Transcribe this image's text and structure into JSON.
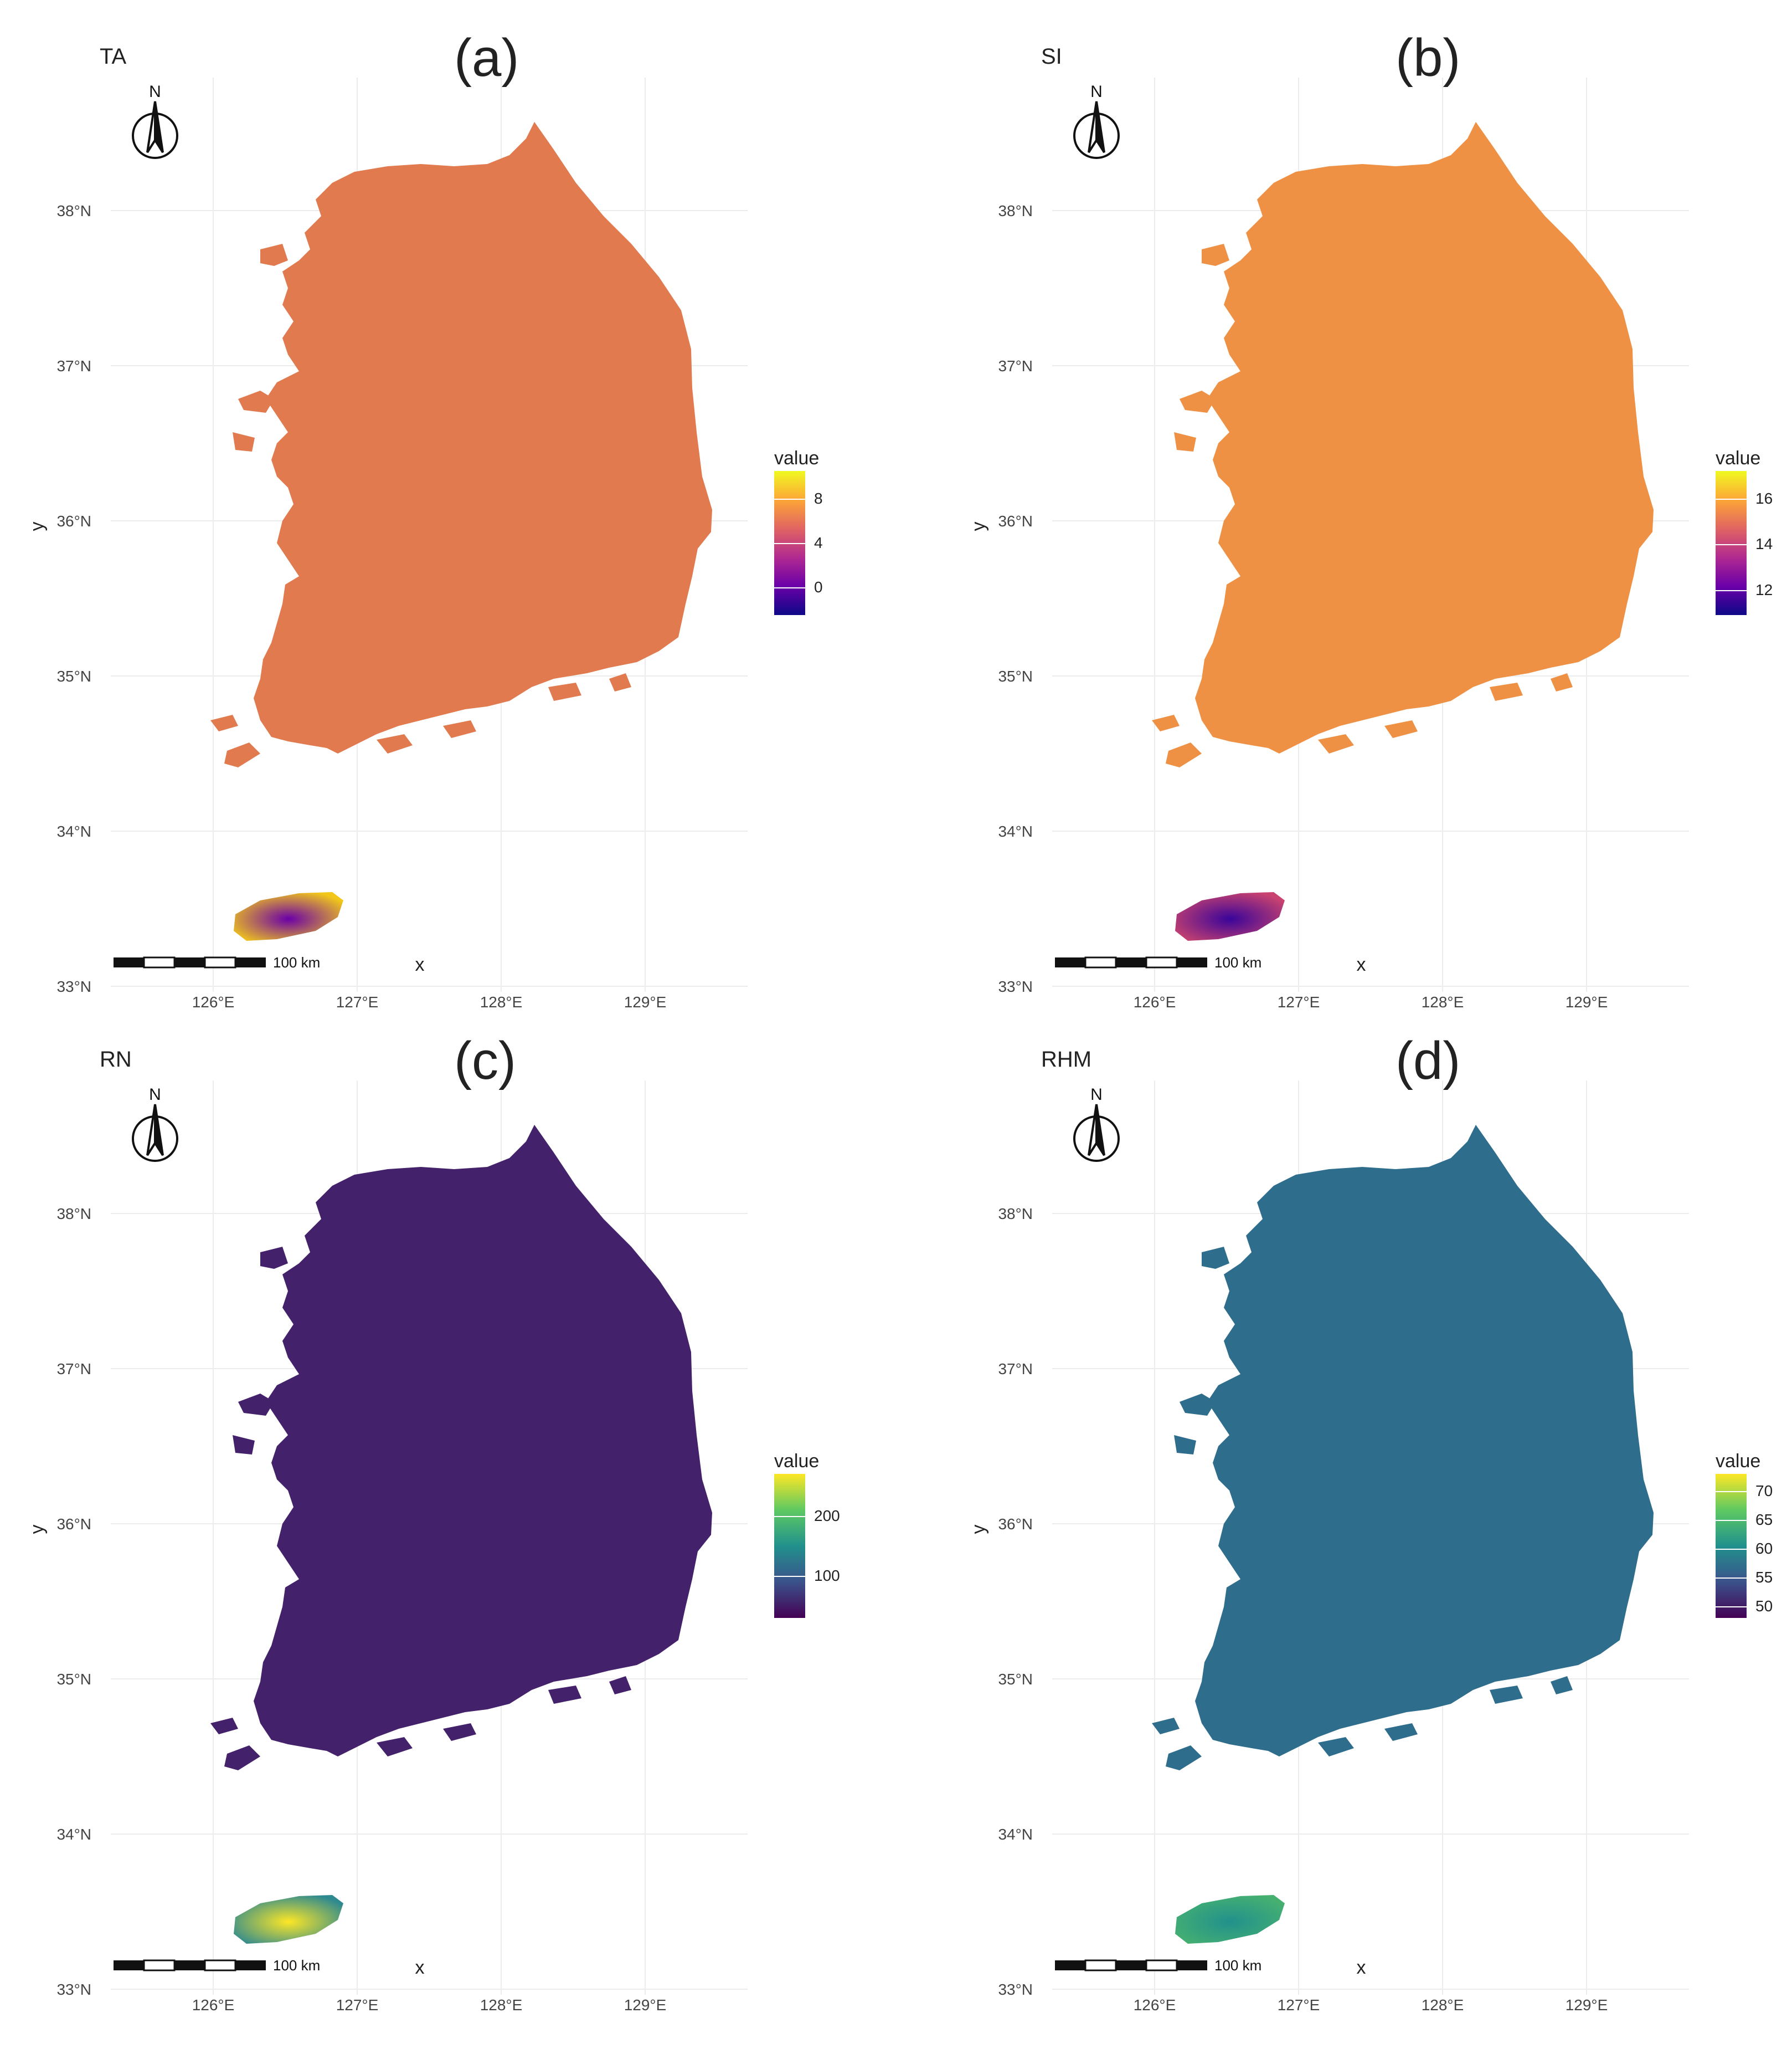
{
  "figure": {
    "panels": [
      {
        "id": "a",
        "variable": "TA",
        "panel_label": "(a)",
        "legend_title": "value",
        "legend_ticks": [
          "8",
          "4",
          "0"
        ],
        "legend_tick_values": [
          8,
          4,
          0
        ],
        "value_range": [
          -2.5,
          10.5
        ],
        "colormap": "plasma",
        "colormap_stops": [
          "#0d0887",
          "#6a00a8",
          "#b12a90",
          "#e16462",
          "#fca636",
          "#f0f921"
        ],
        "mainland_color": "#e17a4e",
        "jeju_color": "#f2c71a"
      },
      {
        "id": "b",
        "variable": "SI",
        "panel_label": "(b)",
        "legend_title": "value",
        "legend_ticks": [
          "16",
          "14",
          "12"
        ],
        "legend_tick_values": [
          16,
          14,
          12
        ],
        "value_range": [
          10.9,
          17.2
        ],
        "colormap": "plasma",
        "colormap_stops": [
          "#0d0887",
          "#6a00a8",
          "#b12a90",
          "#e16462",
          "#fca636",
          "#f0f921"
        ],
        "mainland_color": "#ef9145",
        "jeju_color": "#c8436f"
      },
      {
        "id": "c",
        "variable": "RN",
        "panel_label": "(c)",
        "legend_title": "value",
        "legend_ticks": [
          "200",
          "100"
        ],
        "legend_tick_values": [
          200,
          100
        ],
        "value_range": [
          30,
          270
        ],
        "colormap": "viridis",
        "colormap_stops": [
          "#440154",
          "#3b528b",
          "#21918c",
          "#5ec962",
          "#fde725"
        ],
        "mainland_color": "#44216b",
        "jeju_color": "#2f8a8f"
      },
      {
        "id": "d",
        "variable": "RHM",
        "panel_label": "(d)",
        "legend_title": "value",
        "legend_ticks": [
          "70",
          "65",
          "60",
          "55",
          "50"
        ],
        "legend_tick_values": [
          70,
          65,
          60,
          55,
          50
        ],
        "value_range": [
          48,
          73
        ],
        "colormap": "viridis",
        "colormap_stops": [
          "#440154",
          "#3b528b",
          "#21918c",
          "#5ec962",
          "#fde725"
        ],
        "mainland_color": "#2f6d8d",
        "jeju_color": "#46b071"
      }
    ],
    "latitude_labels": [
      "38°N",
      "37°N",
      "36°N",
      "35°N",
      "34°N",
      "33°N"
    ],
    "longitude_labels": [
      "126°E",
      "127°E",
      "128°E",
      "129°E"
    ],
    "x_axis_title": "x",
    "y_axis_title": "y",
    "north_arrow_label": "N",
    "scale_bar_label": "100 km"
  }
}
